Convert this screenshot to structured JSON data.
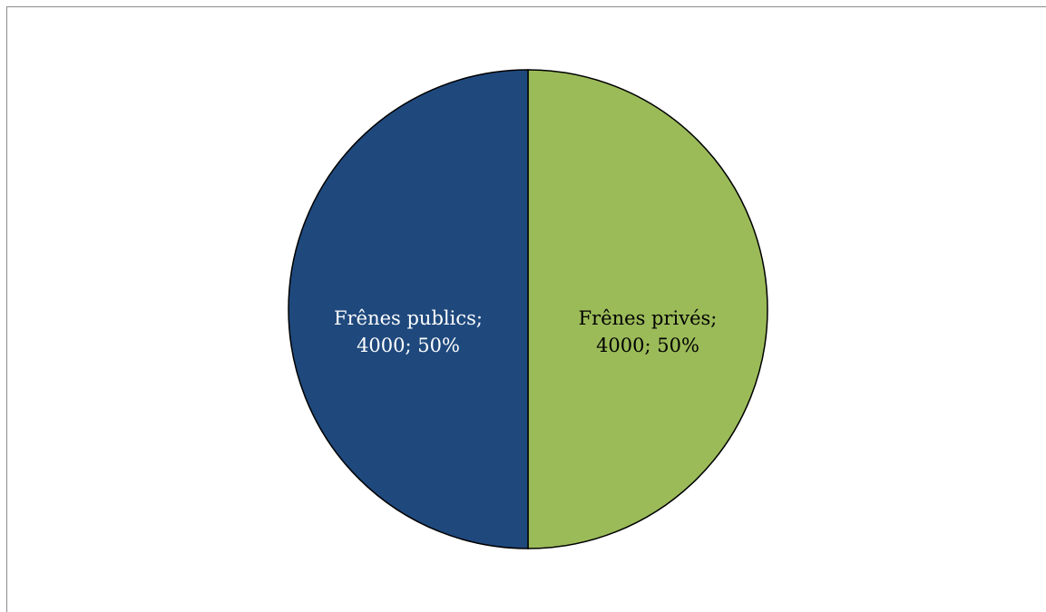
{
  "chart_data": {
    "type": "pie",
    "slices": [
      {
        "name": "Frênes privés",
        "value": 4000,
        "percent": "50%",
        "color": "#9bbb59",
        "label_color": "#000000",
        "label_line1": "Frênes privés;",
        "label_line2": "4000; 50%"
      },
      {
        "name": "Frênes publics",
        "value": 4000,
        "percent": "50%",
        "color": "#1f497d",
        "label_color": "#ffffff",
        "label_line1": "Frênes publics;",
        "label_line2": "4000; 50%"
      }
    ],
    "start_angle": "12 o'clock",
    "direction": "clockwise",
    "border_color": "#000000",
    "legend": "none"
  }
}
